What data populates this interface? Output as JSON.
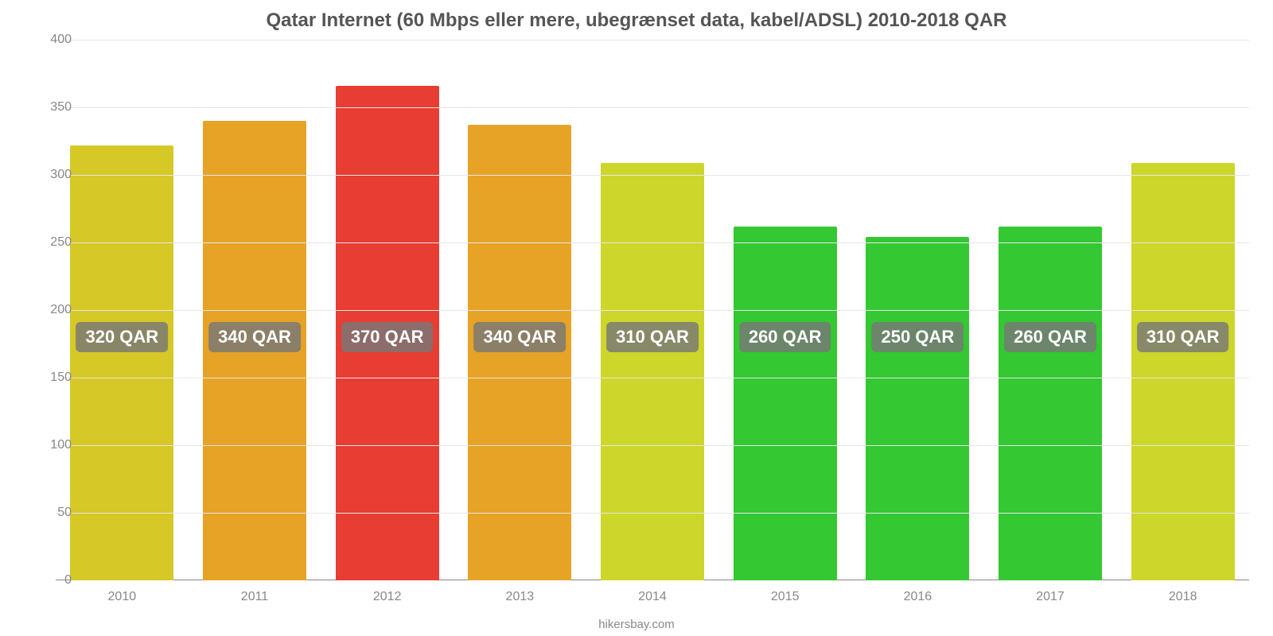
{
  "chart": {
    "type": "bar",
    "title": "Qatar Internet (60 Mbps eller mere, ubegrænset data, kabel/ADSL) 2010-2018 QAR",
    "title_fontsize": 24,
    "title_color": "#555555",
    "background_color": "#ffffff",
    "grid_color": "#e6e6e6",
    "axis_color": "#888888",
    "tick_color": "#888888",
    "tick_fontsize": 16,
    "label_fontsize": 22,
    "label_bg": "rgba(120,120,120,0.82)",
    "label_text_color": "#ffffff",
    "ylim_min": 0,
    "ylim_max": 400,
    "ytick_step": 50,
    "yticks": [
      0,
      50,
      100,
      150,
      200,
      250,
      300,
      350,
      400
    ],
    "bar_width_ratio": 0.78,
    "label_y_value": 180,
    "bars": [
      {
        "category": "2010",
        "value": 322,
        "label": "320 QAR",
        "color": "#d6c826"
      },
      {
        "category": "2011",
        "value": 340,
        "label": "340 QAR",
        "color": "#e6a326"
      },
      {
        "category": "2012",
        "value": 366,
        "label": "370 QAR",
        "color": "#e73d32"
      },
      {
        "category": "2013",
        "value": 337,
        "label": "340 QAR",
        "color": "#e6a326"
      },
      {
        "category": "2014",
        "value": 309,
        "label": "310 QAR",
        "color": "#cdd62a"
      },
      {
        "category": "2015",
        "value": 262,
        "label": "260 QAR",
        "color": "#34c832"
      },
      {
        "category": "2016",
        "value": 254,
        "label": "250 QAR",
        "color": "#34c832"
      },
      {
        "category": "2017",
        "value": 262,
        "label": "260 QAR",
        "color": "#34c832"
      },
      {
        "category": "2018",
        "value": 309,
        "label": "310 QAR",
        "color": "#cdd62a"
      }
    ],
    "source": "hikersbay.com",
    "source_fontsize": 15
  }
}
